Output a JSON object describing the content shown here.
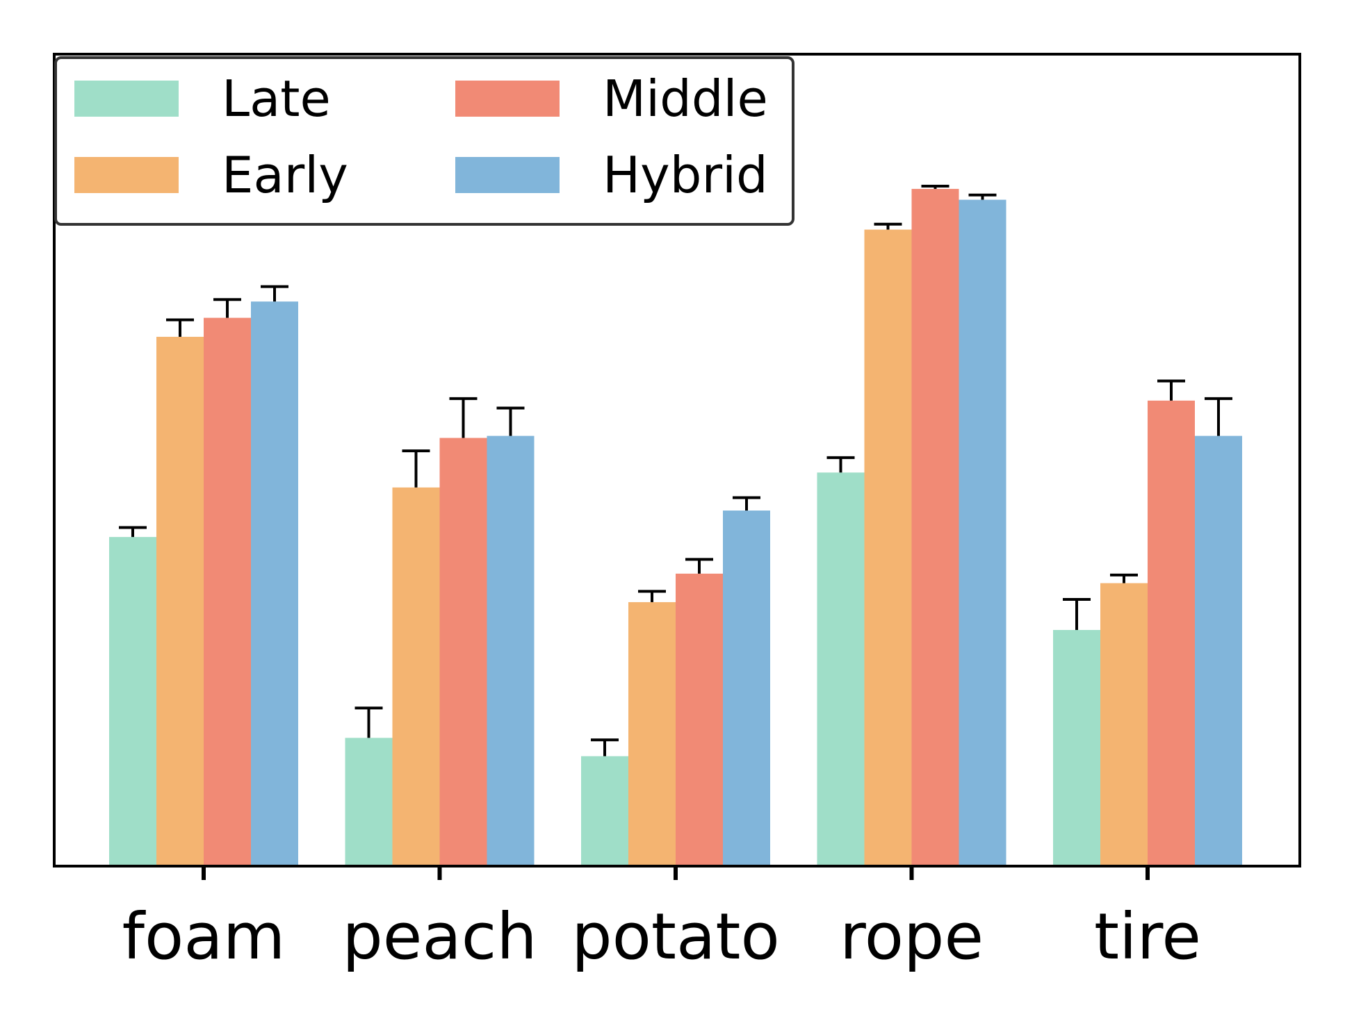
{
  "chart_data": {
    "type": "bar",
    "title": "",
    "xlabel": "",
    "ylabel": "",
    "ylim": [
      0,
      100
    ],
    "grid": false,
    "legend_placement": "top-left",
    "legend_columns": 2,
    "categories": [
      "foam",
      "peach",
      "potato",
      "rope",
      "tire"
    ],
    "series": [
      {
        "name": "Late",
        "color": "#9fdec8",
        "values": [
          48.5,
          18.9,
          16.2,
          58.0,
          34.8
        ],
        "errors": [
          1.4,
          4.4,
          2.4,
          2.2,
          4.5
        ]
      },
      {
        "name": "Early",
        "color": "#f4b471",
        "values": [
          78.0,
          55.8,
          38.9,
          93.8,
          41.7
        ],
        "errors": [
          2.5,
          5.4,
          1.6,
          0.8,
          1.2
        ]
      },
      {
        "name": "Middle",
        "color": "#f18a75",
        "values": [
          80.8,
          63.1,
          43.1,
          99.8,
          68.6
        ],
        "errors": [
          2.7,
          5.8,
          2.1,
          0.4,
          2.9
        ]
      },
      {
        "name": "Hybrid",
        "color": "#81b5da",
        "values": [
          83.2,
          63.4,
          52.4,
          98.2,
          63.4
        ],
        "errors": [
          2.2,
          4.1,
          1.9,
          0.7,
          5.5
        ]
      }
    ],
    "legend_order": [
      "Late",
      "Middle",
      "Early",
      "Hybrid"
    ]
  }
}
